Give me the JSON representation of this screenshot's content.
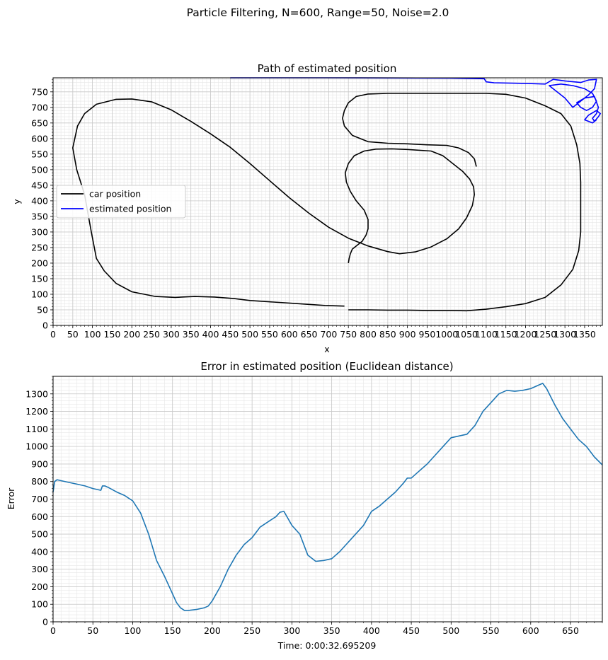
{
  "suptitle": "Particle Filtering, N=600, Range=50, Noise=2.0",
  "colors": {
    "car": "#000000",
    "estimated": "#0000ff",
    "error": "#1f77b4",
    "grid_major": "#c8c8c8",
    "grid_minor": "#e6e6e6"
  },
  "chart_data": [
    {
      "type": "line",
      "title": "Path of estimated position",
      "xlabel": "x",
      "ylabel": "y",
      "xlim": [
        0,
        1395
      ],
      "ylim": [
        0,
        795
      ],
      "xticks": [
        0,
        50,
        100,
        150,
        200,
        250,
        300,
        350,
        400,
        450,
        500,
        550,
        600,
        650,
        700,
        750,
        800,
        850,
        900,
        950,
        1000,
        1050,
        1100,
        1150,
        1200,
        1250,
        1300,
        1350
      ],
      "yticks": [
        0,
        50,
        100,
        150,
        200,
        250,
        300,
        350,
        400,
        450,
        500,
        550,
        600,
        650,
        700,
        750
      ],
      "grid": true,
      "legend_position": "center-left",
      "series": [
        {
          "name": "car position",
          "color": "#000000",
          "segments": [
            [
              [
                740,
                62
              ],
              [
                690,
                64
              ],
              [
                620,
                70
              ],
              [
                560,
                75
              ],
              [
                500,
                80
              ],
              [
                460,
                86
              ],
              [
                410,
                91
              ],
              [
                360,
                93
              ],
              [
                310,
                90
              ],
              [
                260,
                93
              ],
              [
                200,
                108
              ],
              [
                160,
                135
              ],
              [
                130,
                175
              ],
              [
                110,
                215
              ],
              [
                97,
                300
              ],
              [
                80,
                420
              ],
              [
                60,
                500
              ],
              [
                50,
                570
              ],
              [
                62,
                640
              ],
              [
                80,
                680
              ],
              [
                110,
                710
              ],
              [
                160,
                726
              ],
              [
                200,
                727
              ],
              [
                250,
                718
              ],
              [
                300,
                692
              ],
              [
                350,
                655
              ],
              [
                400,
                615
              ],
              [
                450,
                572
              ],
              [
                500,
                520
              ],
              [
                550,
                465
              ],
              [
                600,
                410
              ],
              [
                650,
                360
              ],
              [
                700,
                315
              ],
              [
                750,
                280
              ],
              [
                800,
                255
              ],
              [
                850,
                237
              ],
              [
                880,
                230
              ],
              [
                920,
                236
              ],
              [
                960,
                252
              ],
              [
                1000,
                278
              ],
              [
                1030,
                310
              ],
              [
                1050,
                345
              ],
              [
                1065,
                385
              ],
              [
                1070,
                420
              ],
              [
                1068,
                445
              ],
              [
                1058,
                470
              ],
              [
                1040,
                495
              ],
              [
                1015,
                520
              ],
              [
                990,
                545
              ],
              [
                960,
                560
              ],
              [
                900,
                565
              ],
              [
                860,
                567
              ],
              [
                820,
                566
              ],
              [
                790,
                560
              ],
              [
                765,
                545
              ],
              [
                750,
                520
              ],
              [
                742,
                490
              ],
              [
                745,
                460
              ],
              [
                755,
                430
              ],
              [
                770,
                400
              ],
              [
                790,
                370
              ],
              [
                800,
                340
              ],
              [
                800,
                310
              ],
              [
                795,
                290
              ],
              [
                785,
                270
              ],
              [
                770,
                255
              ],
              [
                760,
                245
              ],
              [
                755,
                230
              ],
              [
                752,
                215
              ],
              [
                750,
                200
              ]
            ],
            [
              [
                750,
                50
              ],
              [
                800,
                50
              ],
              [
                850,
                49
              ],
              [
                900,
                49
              ],
              [
                950,
                48
              ],
              [
                1000,
                48
              ],
              [
                1050,
                47
              ],
              [
                1100,
                52
              ],
              [
                1150,
                60
              ],
              [
                1200,
                70
              ],
              [
                1250,
                90
              ],
              [
                1290,
                130
              ],
              [
                1320,
                180
              ],
              [
                1335,
                240
              ],
              [
                1340,
                300
              ],
              [
                1340,
                380
              ],
              [
                1340,
                460
              ],
              [
                1338,
                520
              ],
              [
                1330,
                580
              ],
              [
                1315,
                640
              ],
              [
                1290,
                680
              ],
              [
                1250,
                705
              ],
              [
                1200,
                730
              ],
              [
                1150,
                742
              ],
              [
                1100,
                745
              ],
              [
                1050,
                745
              ],
              [
                1000,
                745
              ],
              [
                950,
                745
              ],
              [
                900,
                745
              ],
              [
                850,
                745
              ],
              [
                800,
                743
              ],
              [
                770,
                735
              ],
              [
                750,
                715
              ],
              [
                740,
                690
              ],
              [
                735,
                665
              ],
              [
                740,
                640
              ],
              [
                760,
                610
              ],
              [
                800,
                590
              ],
              [
                850,
                585
              ],
              [
                900,
                583
              ],
              [
                950,
                580
              ],
              [
                1000,
                578
              ],
              [
                1030,
                570
              ],
              [
                1055,
                555
              ],
              [
                1070,
                535
              ],
              [
                1075,
                510
              ]
            ]
          ]
        },
        {
          "name": "estimated position",
          "color": "#0000ff",
          "segments": [
            [
              [
                450,
                795
              ],
              [
                600,
                795
              ],
              [
                700,
                795
              ],
              [
                1000,
                794
              ],
              [
                1095,
                792
              ],
              [
                1100,
                782
              ],
              [
                1120,
                779
              ],
              [
                1200,
                777
              ],
              [
                1250,
                775
              ],
              [
                1270,
                790
              ],
              [
                1300,
                785
              ],
              [
                1340,
                780
              ],
              [
                1360,
                788
              ],
              [
                1380,
                790
              ],
              [
                1375,
                760
              ],
              [
                1360,
                740
              ],
              [
                1340,
                720
              ],
              [
                1320,
                700
              ],
              [
                1300,
                730
              ],
              [
                1280,
                750
              ],
              [
                1260,
                770
              ],
              [
                1290,
                775
              ],
              [
                1320,
                770
              ],
              [
                1350,
                760
              ],
              [
                1370,
                745
              ],
              [
                1380,
                720
              ],
              [
                1370,
                700
              ],
              [
                1355,
                690
              ],
              [
                1340,
                700
              ],
              [
                1330,
                715
              ],
              [
                1350,
                730
              ],
              [
                1375,
                735
              ],
              [
                1385,
                700
              ],
              [
                1380,
                680
              ],
              [
                1370,
                665
              ],
              [
                1375,
                655
              ],
              [
                1385,
                670
              ],
              [
                1390,
                680
              ],
              [
                1380,
                690
              ],
              [
                1360,
                675
              ],
              [
                1350,
                660
              ],
              [
                1370,
                650
              ],
              [
                1380,
                660
              ]
            ]
          ]
        }
      ]
    },
    {
      "type": "line",
      "title": "Error in estimated position (Euclidean distance)",
      "xlabel": "Time: 0:00:32.695209",
      "ylabel": "Error",
      "xlim": [
        0,
        690
      ],
      "ylim": [
        0,
        1400
      ],
      "xticks": [
        0,
        50,
        100,
        150,
        200,
        250,
        300,
        350,
        400,
        450,
        500,
        550,
        600,
        650
      ],
      "yticks": [
        0,
        100,
        200,
        300,
        400,
        500,
        600,
        700,
        800,
        900,
        1000,
        1100,
        1200,
        1300
      ],
      "grid": true,
      "series": [
        {
          "color": "#1f77b4",
          "x": [
            0,
            2,
            5,
            10,
            20,
            30,
            40,
            50,
            60,
            62,
            65,
            70,
            80,
            90,
            95,
            100,
            110,
            120,
            130,
            140,
            150,
            155,
            160,
            165,
            170,
            180,
            190,
            195,
            200,
            210,
            220,
            230,
            240,
            250,
            255,
            260,
            270,
            280,
            285,
            290,
            300,
            310,
            320,
            330,
            340,
            350,
            360,
            370,
            380,
            390,
            400,
            410,
            420,
            430,
            440,
            445,
            450,
            460,
            470,
            480,
            490,
            500,
            510,
            520,
            530,
            540,
            550,
            560,
            565,
            570,
            580,
            590,
            600,
            610,
            615,
            620,
            630,
            640,
            650,
            660,
            670,
            680,
            690
          ],
          "y": [
            740,
            800,
            810,
            805,
            795,
            785,
            775,
            760,
            750,
            775,
            775,
            765,
            740,
            720,
            705,
            690,
            620,
            500,
            350,
            260,
            160,
            110,
            80,
            65,
            65,
            70,
            80,
            90,
            120,
            200,
            300,
            380,
            440,
            480,
            510,
            540,
            570,
            600,
            625,
            630,
            550,
            500,
            380,
            345,
            350,
            360,
            400,
            450,
            500,
            550,
            630,
            660,
            700,
            740,
            790,
            820,
            820,
            860,
            900,
            950,
            1000,
            1050,
            1060,
            1070,
            1120,
            1200,
            1250,
            1300,
            1310,
            1320,
            1315,
            1320,
            1330,
            1350,
            1360,
            1330,
            1240,
            1160,
            1100,
            1040,
            1000,
            940,
            895
          ]
        }
      ]
    }
  ]
}
